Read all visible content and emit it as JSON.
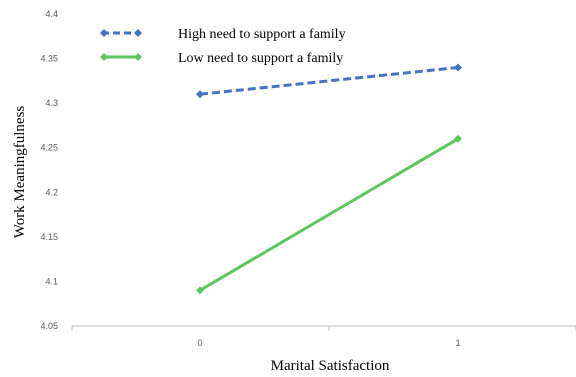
{
  "chart_data": {
    "type": "line",
    "title": "",
    "xlabel": "Marital Satisfaction",
    "ylabel": "Work Meaningfulness",
    "categories": [
      "0",
      "1"
    ],
    "ylim": [
      4.05,
      4.4
    ],
    "yticks": [
      "4.05",
      "4.1",
      "4.15",
      "4.2",
      "4.25",
      "4.3",
      "4.35",
      "4.4"
    ],
    "grid": false,
    "legend_position": "top-left",
    "series": [
      {
        "name": "High need to support a family",
        "values": [
          4.31,
          4.34
        ],
        "color": "#4472C4",
        "style": "dashed"
      },
      {
        "name": "Low need to support a family",
        "values": [
          4.09,
          4.26
        ],
        "color": "#5CC85C",
        "style": "solid"
      }
    ]
  }
}
